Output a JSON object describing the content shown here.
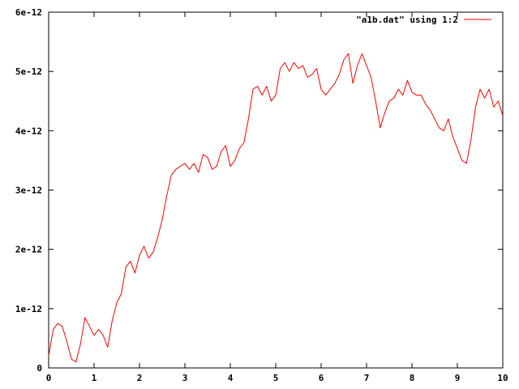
{
  "chart_data": {
    "type": "line",
    "title": "",
    "xlabel": "",
    "ylabel": "",
    "xlim": [
      0,
      10
    ],
    "ylim": [
      0,
      6e-12
    ],
    "grid": false,
    "legend_position": "top-right",
    "x_ticks": [
      {
        "value": 0,
        "label": "0"
      },
      {
        "value": 1,
        "label": "1"
      },
      {
        "value": 2,
        "label": "2"
      },
      {
        "value": 3,
        "label": "3"
      },
      {
        "value": 4,
        "label": "4"
      },
      {
        "value": 5,
        "label": "5"
      },
      {
        "value": 6,
        "label": "6"
      },
      {
        "value": 7,
        "label": "7"
      },
      {
        "value": 8,
        "label": "8"
      },
      {
        "value": 9,
        "label": "9"
      },
      {
        "value": 10,
        "label": "10"
      }
    ],
    "y_ticks": [
      {
        "value": 0,
        "label": "0"
      },
      {
        "value": 1e-12,
        "label": "1e-12"
      },
      {
        "value": 2e-12,
        "label": "2e-12"
      },
      {
        "value": 3e-12,
        "label": "3e-12"
      },
      {
        "value": 4e-12,
        "label": "4e-12"
      },
      {
        "value": 5e-12,
        "label": "5e-12"
      },
      {
        "value": 6e-12,
        "label": "6e-12"
      }
    ],
    "series": [
      {
        "name": "\"a1b.dat\" using 1:2",
        "color": "#ff0000",
        "x": [
          0,
          0.1,
          0.2,
          0.3,
          0.4,
          0.5,
          0.6,
          0.7,
          0.8,
          0.9,
          1.0,
          1.1,
          1.2,
          1.3,
          1.4,
          1.5,
          1.6,
          1.7,
          1.8,
          1.9,
          2.0,
          2.1,
          2.2,
          2.3,
          2.4,
          2.5,
          2.6,
          2.7,
          2.8,
          2.9,
          3.0,
          3.1,
          3.2,
          3.3,
          3.4,
          3.5,
          3.6,
          3.7,
          3.8,
          3.9,
          4.0,
          4.1,
          4.2,
          4.3,
          4.4,
          4.5,
          4.6,
          4.7,
          4.8,
          4.9,
          5.0,
          5.1,
          5.2,
          5.3,
          5.4,
          5.5,
          5.6,
          5.7,
          5.8,
          5.9,
          6.0,
          6.1,
          6.2,
          6.3,
          6.4,
          6.5,
          6.6,
          6.7,
          6.8,
          6.9,
          7.0,
          7.1,
          7.2,
          7.3,
          7.4,
          7.5,
          7.6,
          7.7,
          7.8,
          7.9,
          8.0,
          8.1,
          8.2,
          8.3,
          8.4,
          8.5,
          8.6,
          8.7,
          8.8,
          8.9,
          9.0,
          9.1,
          9.2,
          9.3,
          9.4,
          9.5,
          9.6,
          9.7,
          9.8,
          9.9,
          10.0
        ],
        "y": [
          2e-13,
          6.5e-13,
          7.5e-13,
          7e-13,
          4.5e-13,
          1.5e-13,
          1e-13,
          4e-13,
          8.5e-13,
          7e-13,
          5.5e-13,
          6.5e-13,
          5.5e-13,
          3.5e-13,
          8e-13,
          1.1e-12,
          1.25e-12,
          1.7e-12,
          1.8e-12,
          1.6e-12,
          1.9e-12,
          2.05e-12,
          1.85e-12,
          1.95e-12,
          2.2e-12,
          2.5e-12,
          2.9e-12,
          3.25e-12,
          3.35e-12,
          3.4e-12,
          3.45e-12,
          3.35e-12,
          3.45e-12,
          3.3e-12,
          3.6e-12,
          3.55e-12,
          3.35e-12,
          3.4e-12,
          3.65e-12,
          3.75e-12,
          3.4e-12,
          3.5e-12,
          3.7e-12,
          3.8e-12,
          4.2e-12,
          4.7e-12,
          4.75e-12,
          4.6e-12,
          4.75e-12,
          4.5e-12,
          4.6e-12,
          5.05e-12,
          5.15e-12,
          5e-12,
          5.15e-12,
          5.05e-12,
          5.1e-12,
          4.9e-12,
          4.95e-12,
          5.05e-12,
          4.7e-12,
          4.6e-12,
          4.7e-12,
          4.8e-12,
          4.95e-12,
          5.2e-12,
          5.3e-12,
          4.8e-12,
          5.1e-12,
          5.3e-12,
          5.1e-12,
          4.9e-12,
          4.5e-12,
          4.05e-12,
          4.3e-12,
          4.5e-12,
          4.55e-12,
          4.7e-12,
          4.6e-12,
          4.85e-12,
          4.65e-12,
          4.6e-12,
          4.6e-12,
          4.45e-12,
          4.35e-12,
          4.2e-12,
          4.05e-12,
          4e-12,
          4.2e-12,
          3.9e-12,
          3.7e-12,
          3.5e-12,
          3.45e-12,
          3.85e-12,
          4.4e-12,
          4.7e-12,
          4.55e-12,
          4.7e-12,
          4.4e-12,
          4.5e-12,
          4.25e-12
        ]
      }
    ]
  }
}
